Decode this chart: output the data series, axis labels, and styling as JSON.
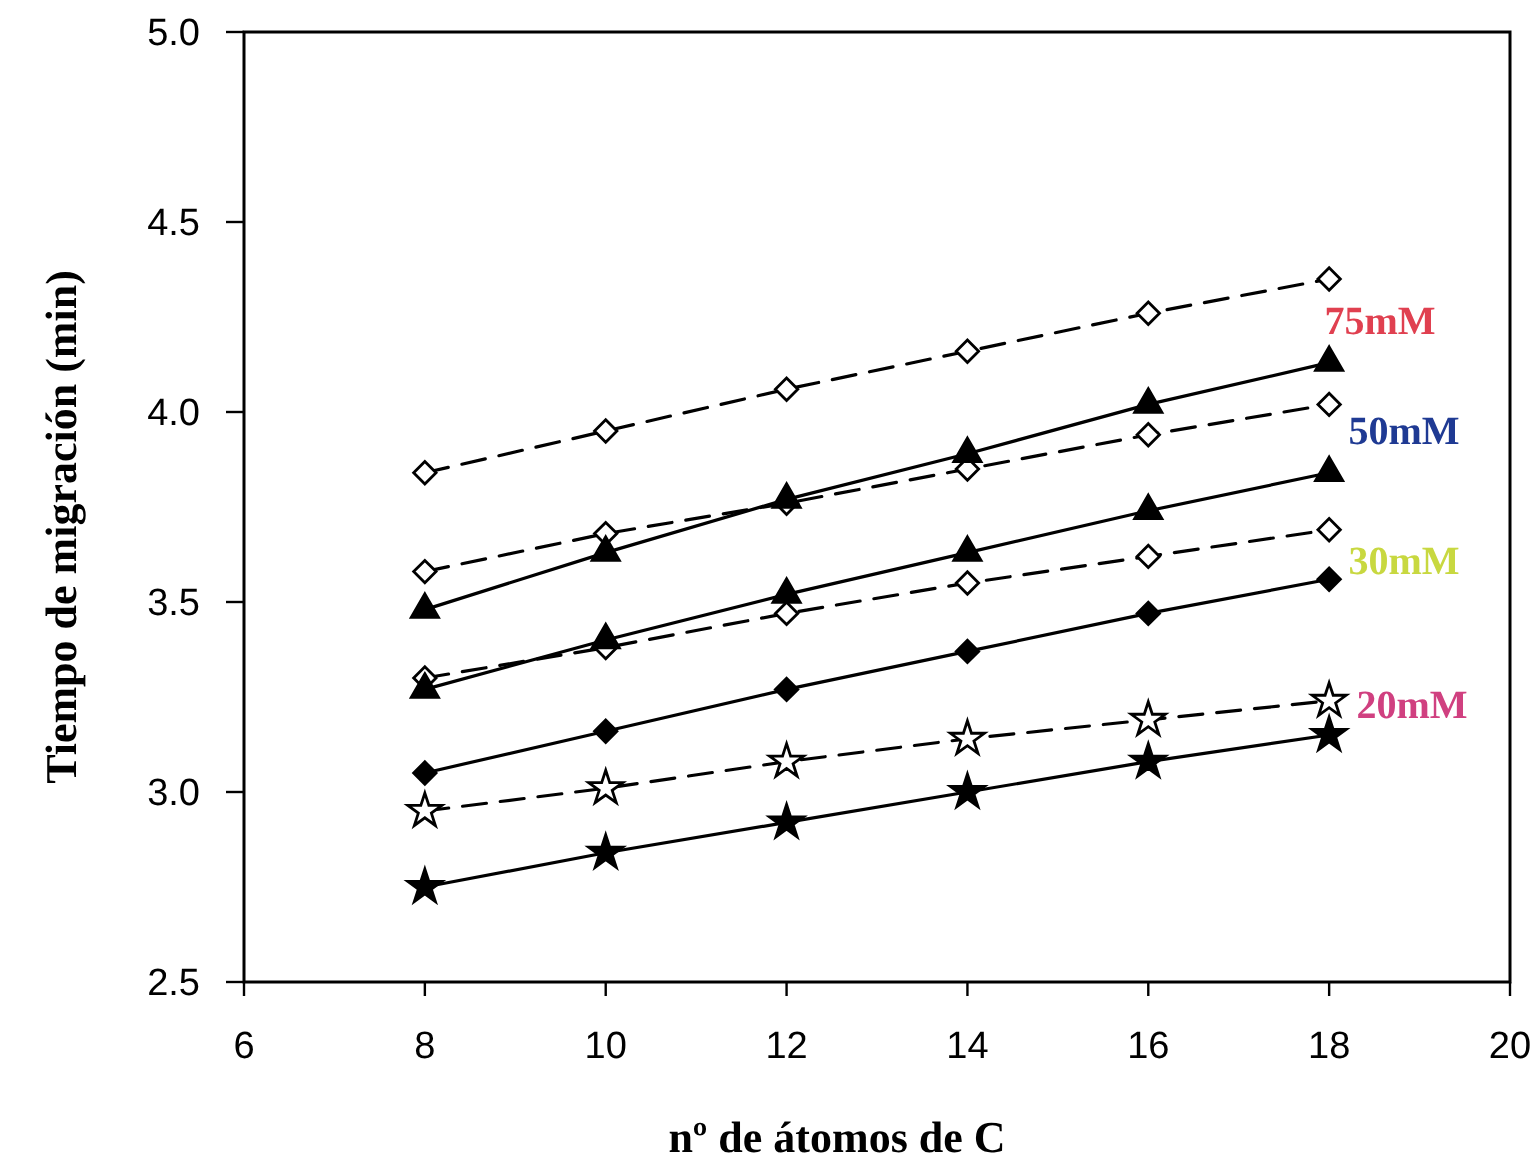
{
  "chart_data": {
    "type": "line",
    "xlabel": "nº de átomos de C",
    "ylabel": "Tiempo de migración (min)",
    "x": [
      8,
      10,
      12,
      14,
      16,
      18
    ],
    "xlim": [
      6,
      20
    ],
    "xticks": [
      6,
      8,
      10,
      12,
      14,
      16,
      18,
      20
    ],
    "ylim": [
      2.5,
      5.0
    ],
    "yticks": [
      {
        "value": 2.5,
        "label": "2.5"
      },
      {
        "value": 3,
        "label": "3.0"
      },
      {
        "value": 3.5,
        "label": "3.5"
      },
      {
        "value": 4,
        "label": "4.0"
      },
      {
        "value": 4.5,
        "label": "4.5"
      },
      {
        "value": 5,
        "label": "5.0"
      }
    ],
    "grid": false,
    "series": [
      {
        "color": "#000000",
        "marker": "diamond",
        "line_style": "dashed",
        "values": [
          3.84,
          3.95,
          4.06,
          4.16,
          4.26,
          4.35
        ]
      },
      {
        "color": "#000000",
        "marker": "triangle",
        "line_style": "solid",
        "values": [
          3.48,
          3.63,
          3.77,
          3.89,
          4.02,
          4.13
        ]
      },
      {
        "color": "#000000",
        "marker": "diamond",
        "line_style": "dashed",
        "values": [
          3.58,
          3.68,
          3.76,
          3.85,
          3.94,
          4.02
        ]
      },
      {
        "color": "#000000",
        "marker": "triangle",
        "line_style": "solid",
        "values": [
          3.27,
          3.4,
          3.52,
          3.63,
          3.74,
          3.84
        ]
      },
      {
        "color": "#000000",
        "marker": "diamond",
        "line_style": "dashed",
        "values": [
          3.3,
          3.38,
          3.47,
          3.55,
          3.62,
          3.69
        ]
      },
      {
        "color": "#000000",
        "marker": "diamond",
        "line_style": "solid",
        "values": [
          3.05,
          3.16,
          3.27,
          3.37,
          3.47,
          3.56
        ]
      },
      {
        "color": "#000000",
        "marker": "star",
        "line_style": "dashed",
        "values": [
          2.95,
          3.01,
          3.08,
          3.14,
          3.19,
          3.24
        ]
      },
      {
        "color": "#000000",
        "marker": "star",
        "line_style": "solid",
        "values": [
          2.75,
          2.84,
          2.92,
          3.0,
          3.08,
          3.15
        ]
      }
    ],
    "annotations": [
      "75mM",
      "50mM",
      "30mM",
      "20mM"
    ]
  }
}
